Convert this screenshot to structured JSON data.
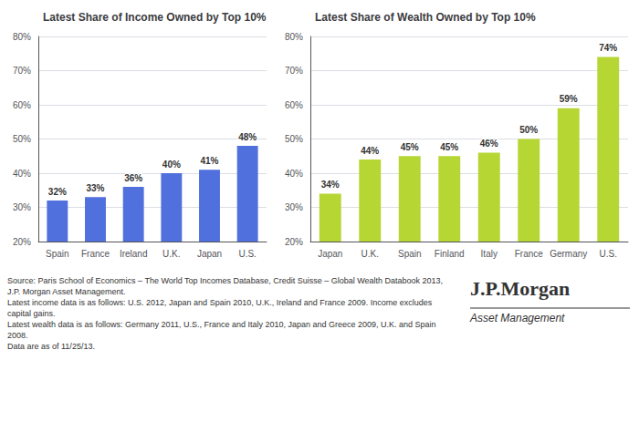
{
  "chart_data": [
    {
      "type": "bar",
      "title": "Latest Share of Income Owned by Top 10%",
      "categories": [
        "Spain",
        "France",
        "Ireland",
        "U.K.",
        "Japan",
        "U.S."
      ],
      "values": [
        32,
        33,
        36,
        40,
        41,
        48
      ],
      "value_labels": [
        "32%",
        "33%",
        "36%",
        "40%",
        "41%",
        "48%"
      ],
      "ylim": [
        20,
        80
      ],
      "yticks": [
        {
          "value": 20,
          "label": "20%"
        },
        {
          "value": 30,
          "label": "30%"
        },
        {
          "value": 40,
          "label": "40%"
        },
        {
          "value": 50,
          "label": "50%"
        },
        {
          "value": 60,
          "label": "60%"
        },
        {
          "value": 70,
          "label": "70%"
        },
        {
          "value": 80,
          "label": "80%"
        }
      ],
      "grid": true,
      "data_labels": true,
      "annotations": [
        "Source: Paris School of Economics – The World Top Incomes Database, Credit Suisse – Global Wealth Databook 2013, J.P. Morgan Asset Management.",
        "Latest income data is as follows: U.S. 2012, Japan and Spain 2010, U.K., Ireland and France 2009. Income excludes capital gains.",
        "Latest wealth data is as follows: Germany 2011, U.S., France and Italy 2010, Japan and Greece 2009, U.K. and Spain 2008.",
        "Data are as of 11/25/13."
      ]
    },
    {
      "type": "bar",
      "title": "Latest Share of Wealth Owned by Top 10%",
      "categories": [
        "Japan",
        "U.K.",
        "Spain",
        "Finland",
        "Italy",
        "France",
        "Germany",
        "U.S."
      ],
      "values": [
        34,
        44,
        45,
        45,
        46,
        50,
        59,
        74
      ],
      "value_labels": [
        "34%",
        "44%",
        "45%",
        "45%",
        "46%",
        "50%",
        "59%",
        "74%"
      ],
      "ylim": [
        20,
        80
      ],
      "yticks": [
        {
          "value": 20,
          "label": "20%"
        },
        {
          "value": 30,
          "label": "30%"
        },
        {
          "value": 40,
          "label": "40%"
        },
        {
          "value": 50,
          "label": "50%"
        },
        {
          "value": 60,
          "label": "60%"
        },
        {
          "value": 70,
          "label": "70%"
        },
        {
          "value": 80,
          "label": "80%"
        }
      ],
      "grid": true,
      "data_labels": true,
      "annotations": [
        "J.P.Morgan",
        "Asset Management"
      ]
    }
  ]
}
